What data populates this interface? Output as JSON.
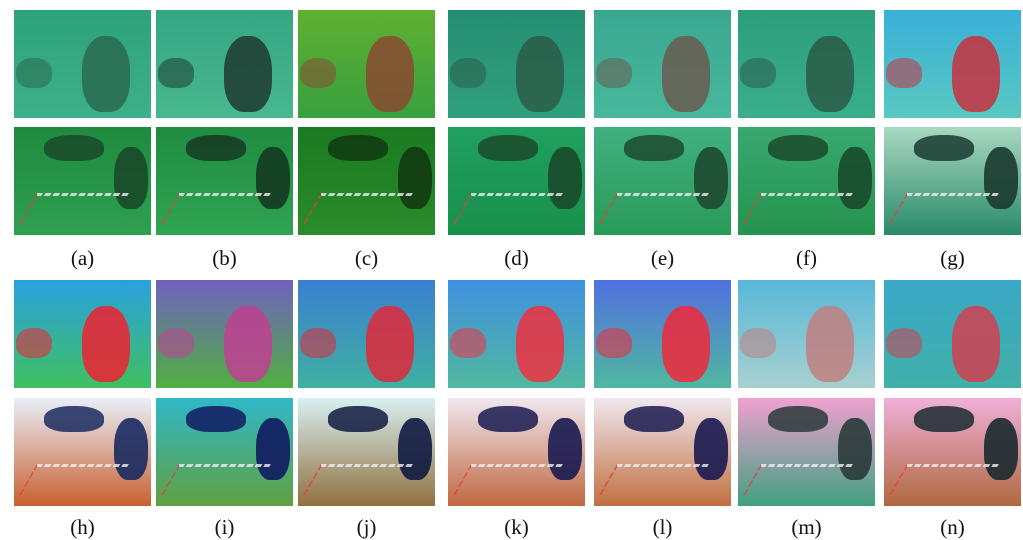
{
  "labels": [
    "(a)",
    "(b)",
    "(c)",
    "(d)",
    "(e)",
    "(f)",
    "(g)",
    "(h)",
    "(i)",
    "(j)",
    "(k)",
    "(l)",
    "(m)",
    "(n)"
  ]
}
